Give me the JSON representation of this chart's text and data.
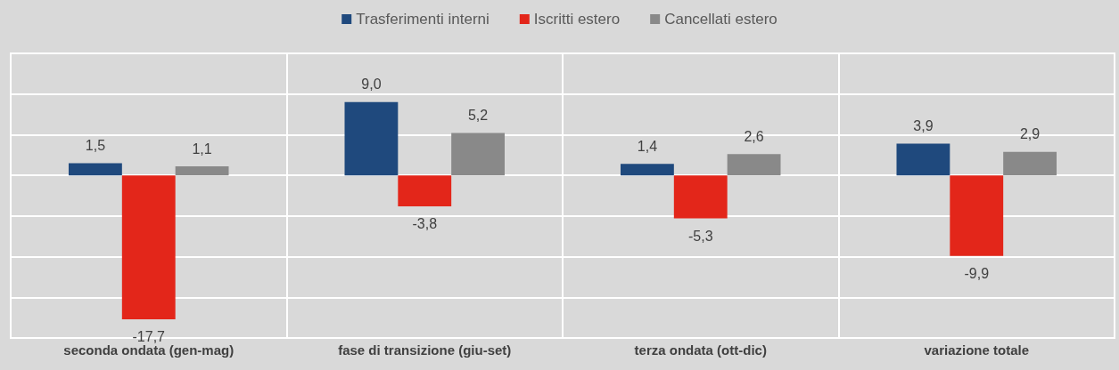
{
  "chart_data": {
    "type": "bar",
    "categories": [
      "seconda ondata (gen-mag)",
      "fase di transizione (giu-set)",
      "terza ondata (ott-dic)",
      "variazione totale"
    ],
    "series": [
      {
        "name": "Trasferimenti interni",
        "color": "#1f497d",
        "values": [
          1.5,
          9.0,
          1.4,
          3.9
        ],
        "value_labels": [
          "1,5",
          "9,0",
          "1,4",
          "3,9"
        ]
      },
      {
        "name": "Iscritti estero",
        "color": "#e3261a",
        "values": [
          -17.7,
          -3.8,
          -5.3,
          -9.9
        ],
        "value_labels": [
          "-17,7",
          "-3,8",
          "-5,3",
          "-9,9"
        ]
      },
      {
        "name": "Cancellati estero",
        "color": "#898989",
        "values": [
          1.1,
          5.2,
          2.6,
          2.9
        ],
        "value_labels": [
          "1,1",
          "5,2",
          "2,6",
          "2,9"
        ]
      }
    ],
    "ylim": [
      -20,
      15
    ],
    "yticks": [
      {
        "value": -20,
        "label": null
      },
      {
        "value": -15,
        "label": null
      },
      {
        "value": -10,
        "label": null
      },
      {
        "value": -5,
        "label": null
      },
      {
        "value": 0,
        "label": null
      },
      {
        "value": 5,
        "label": null
      },
      {
        "value": 10,
        "label": null
      },
      {
        "value": 15,
        "label": null
      }
    ],
    "tick_labels": "x",
    "grid": true,
    "legend": "top"
  }
}
